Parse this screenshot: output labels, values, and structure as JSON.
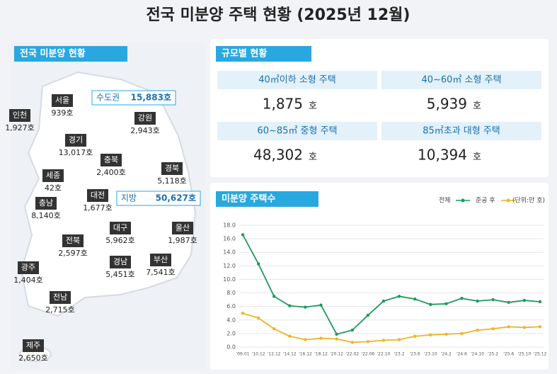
{
  "title": "전국 미분양 주택 현황 (2025년 12월)",
  "map": {
    "heading": "전국 미분양 현황",
    "summary": [
      {
        "name": "수도권",
        "value": "15,883호"
      },
      {
        "name": "지방",
        "value": "50,627호"
      }
    ],
    "regions": [
      {
        "name": "서울",
        "value": "939호"
      },
      {
        "name": "인천",
        "value": "1,927호"
      },
      {
        "name": "경기",
        "value": "13,017호"
      },
      {
        "name": "강원",
        "value": "2,943호"
      },
      {
        "name": "충북",
        "value": "2,400호"
      },
      {
        "name": "세종",
        "value": "42호"
      },
      {
        "name": "경북",
        "value": "5,118호"
      },
      {
        "name": "대전",
        "value": "1,677호"
      },
      {
        "name": "충남",
        "value": "8,140호"
      },
      {
        "name": "대구",
        "value": "5,962호"
      },
      {
        "name": "울산",
        "value": "1,987호"
      },
      {
        "name": "전북",
        "value": "2,597호"
      },
      {
        "name": "경남",
        "value": "5,451호"
      },
      {
        "name": "부산",
        "value": "7,541호"
      },
      {
        "name": "광주",
        "value": "1,404호"
      },
      {
        "name": "전남",
        "value": "2,715호"
      },
      {
        "name": "제주",
        "value": "2,650호"
      }
    ]
  },
  "size": {
    "heading": "규모별 현황",
    "unit": "호",
    "cells": [
      {
        "label": "40㎡이하 소형 주택",
        "value": "1,875"
      },
      {
        "label": "40~60㎡ 소형 주택",
        "value": "5,939"
      },
      {
        "label": "60~85㎡ 중형 주택",
        "value": "48,302"
      },
      {
        "label": "85㎡초과 대형 주택",
        "value": "10,394"
      }
    ]
  },
  "chart_data": {
    "type": "line",
    "title": "미분양 주택수",
    "unit_note": "(단위:만 호)",
    "categories": [
      "'09.01",
      "'10.12",
      "'12.12",
      "'14.12",
      "'16.12",
      "'18.12",
      "'20.12",
      "'22.02",
      "'22.06",
      "'22.10",
      "'23.2",
      "'23.6",
      "'23.10",
      "'24.2",
      "'24.6",
      "'24.10",
      "'25.2",
      "'25.6",
      "'25.10",
      "'25.12"
    ],
    "series": [
      {
        "name": "전체",
        "color": "#1e9a5a",
        "values": [
          16.6,
          12.3,
          7.5,
          6.1,
          5.9,
          6.2,
          1.9,
          2.5,
          4.7,
          6.8,
          7.5,
          7.1,
          6.3,
          6.4,
          7.2,
          6.8,
          7.0,
          6.6,
          6.9,
          6.7
        ]
      },
      {
        "name": "준공 후",
        "color": "#f0b429",
        "values": [
          5.0,
          4.3,
          2.7,
          1.6,
          1.1,
          1.3,
          1.2,
          0.7,
          0.8,
          1.0,
          1.1,
          1.6,
          1.8,
          1.9,
          2.0,
          2.5,
          2.7,
          3.0,
          2.9,
          3.0
        ]
      }
    ],
    "ylim": [
      0,
      18
    ],
    "yticks": [
      {
        "value": 0,
        "label": "0.0"
      },
      {
        "value": 2,
        "label": "2.0"
      },
      {
        "value": 4,
        "label": "4.0"
      },
      {
        "value": 6,
        "label": "6.0"
      },
      {
        "value": 8,
        "label": "8.0"
      },
      {
        "value": 10,
        "label": "10.0"
      },
      {
        "value": 12,
        "label": "12.0"
      },
      {
        "value": 14,
        "label": "14.0"
      },
      {
        "value": 16,
        "label": "16.0"
      },
      {
        "value": 18,
        "label": "18.0"
      }
    ],
    "grid": true
  }
}
